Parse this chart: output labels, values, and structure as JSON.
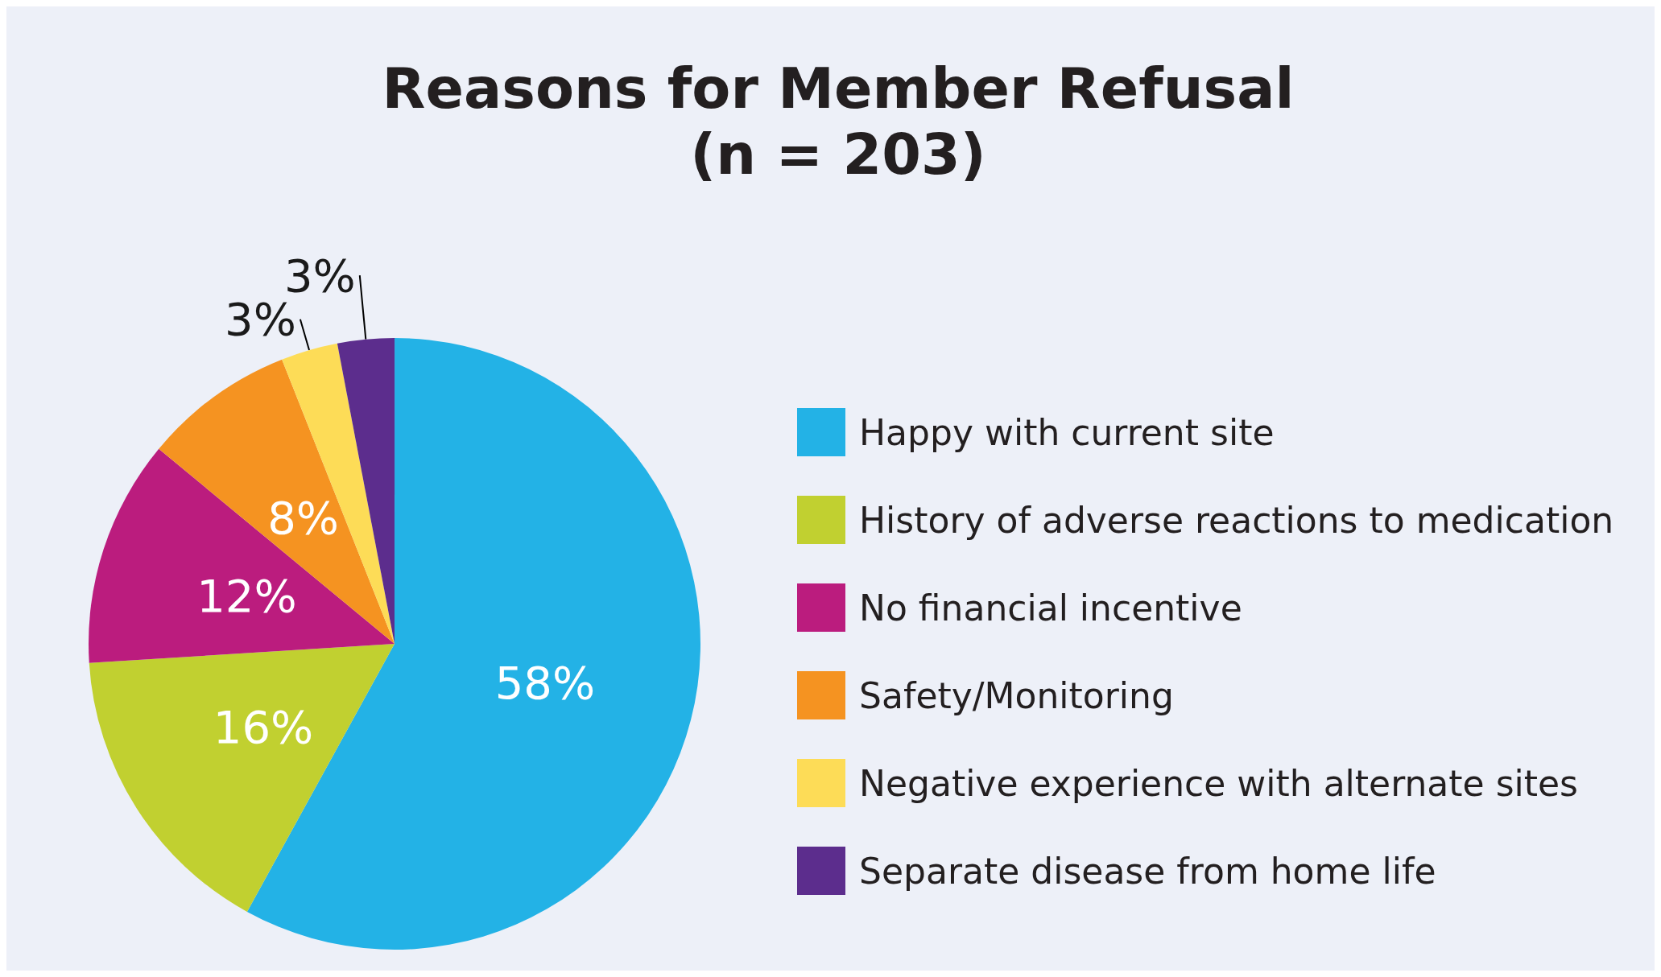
{
  "chart_data": {
    "type": "pie",
    "title": "Reasons for Member Refusal",
    "subtitle": "(n = 203)",
    "categories": [
      "Happy with current site",
      "History of adverse reactions to medication",
      "No financial incentive",
      "Safety/Monitoring",
      "Negative experience with alternate sites",
      "Separate disease from home life"
    ],
    "values": [
      58,
      16,
      12,
      8,
      3,
      3
    ],
    "value_labels": [
      "58%",
      "16%",
      "12%",
      "8%",
      "3%",
      "3%"
    ],
    "colors": [
      "#23b2e6",
      "#c1d030",
      "#bb1c7e",
      "#f59321",
      "#fddc57",
      "#5c2d8d"
    ],
    "legend": "right"
  }
}
